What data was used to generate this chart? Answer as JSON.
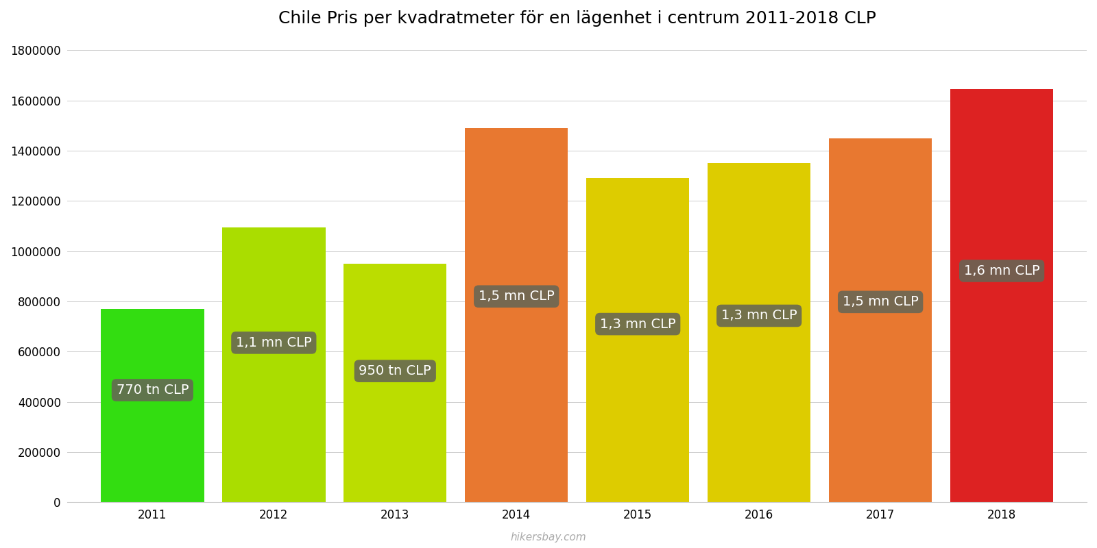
{
  "years": [
    2011,
    2012,
    2013,
    2014,
    2015,
    2016,
    2017,
    2018
  ],
  "values": [
    770000,
    1095000,
    950000,
    1490000,
    1290000,
    1350000,
    1450000,
    1645000
  ],
  "bar_colors": [
    "#33dd11",
    "#aadd00",
    "#bbdd00",
    "#e87830",
    "#ddcc00",
    "#ddcc00",
    "#e87830",
    "#dd2222"
  ],
  "labels": [
    "770 tn CLP",
    "1,1 mn CLP",
    "950 tn CLP",
    "1,5 mn CLP",
    "1,3 mn CLP",
    "1,3 mn CLP",
    "1,5 mn CLP",
    "1,6 mn CLP"
  ],
  "label_y_fractions": [
    0.58,
    0.58,
    0.55,
    0.55,
    0.55,
    0.55,
    0.55,
    0.56
  ],
  "title": "Chile Pris per kvadratmeter för en lägenhet i centrum 2011-2018 CLP",
  "ylim": [
    0,
    1850000
  ],
  "yticks": [
    0,
    200000,
    400000,
    600000,
    800000,
    1000000,
    1200000,
    1400000,
    1600000,
    1800000
  ],
  "watermark": "hikersbay.com",
  "label_box_color": "#666655",
  "label_text_color": "#ffffff",
  "background_color": "#ffffff",
  "bar_width": 0.85,
  "title_fontsize": 18,
  "tick_fontsize": 12,
  "label_fontsize": 14
}
